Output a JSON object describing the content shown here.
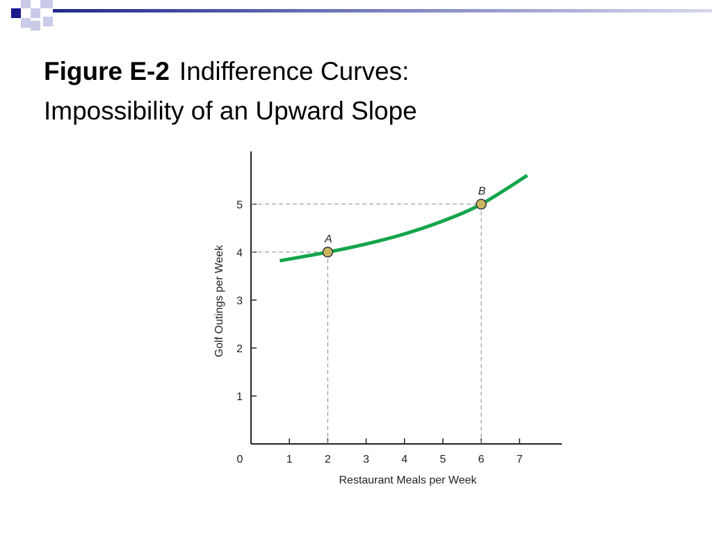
{
  "slide": {
    "title_bold": "Figure E-2",
    "title_rest": "Indifference Curves:",
    "title_line2": "Impossibility of an Upward Slope"
  },
  "chart_data": {
    "type": "line",
    "xlabel": "Restaurant Meals per Week",
    "ylabel": "Golf Outings per Week",
    "origin_label": "0",
    "xlim": [
      0,
      8.1
    ],
    "ylim": [
      0,
      6.1
    ],
    "xticks": [
      1,
      2,
      3,
      4,
      5,
      6,
      7
    ],
    "yticks": [
      1,
      2,
      3,
      4,
      5
    ],
    "series": [
      {
        "color": "#13a54a",
        "x": [
          0.75,
          2,
          3,
          4,
          5,
          6,
          7.2
        ],
        "values": [
          3.82,
          4,
          4.17,
          4.38,
          4.65,
          5,
          5.6
        ]
      }
    ],
    "points": {
      "labels": [
        "A",
        "B"
      ],
      "x": [
        2,
        6
      ],
      "y": [
        4,
        5
      ],
      "color": "#c8b560"
    }
  }
}
